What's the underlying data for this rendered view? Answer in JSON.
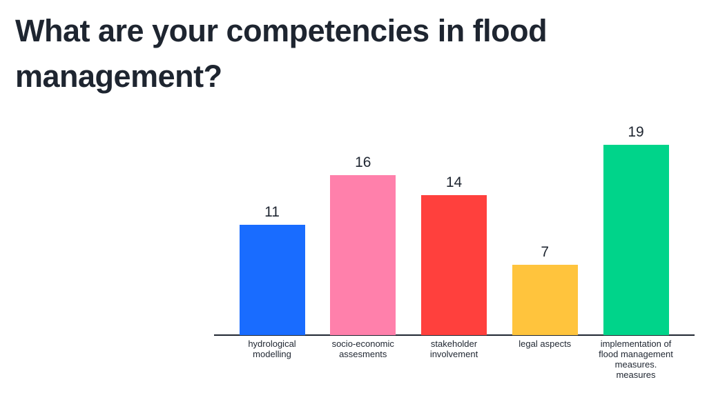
{
  "chart_data": {
    "type": "bar",
    "title": "What are your competencies in flood management?",
    "categories": [
      "hydrological modelling",
      "socio-economic assesments",
      "stakeholder involvement",
      "legal aspects",
      "implementation of flood management measures. measures"
    ],
    "values": [
      11,
      16,
      14,
      7,
      19
    ],
    "colors": [
      "#196cff",
      "#ff80ab",
      "#ff403d",
      "#ffc43d",
      "#00d48a"
    ]
  }
}
